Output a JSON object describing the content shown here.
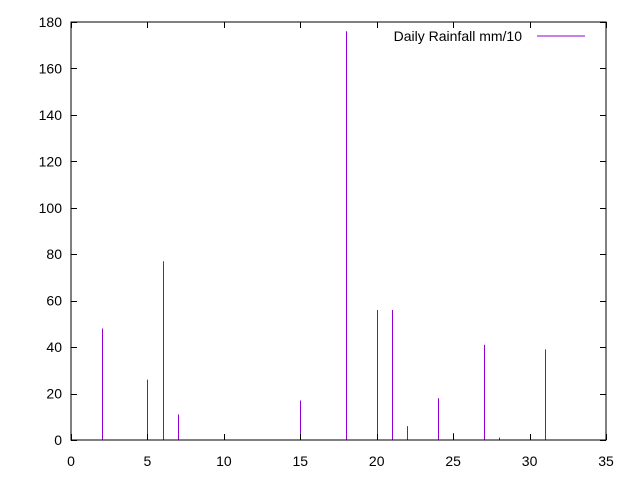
{
  "chart_data": {
    "type": "bar",
    "style": "impulses",
    "title": "",
    "xlabel": "",
    "ylabel": "",
    "xlim": [
      0,
      35
    ],
    "ylim": [
      0,
      180
    ],
    "x_ticks": [
      0,
      5,
      10,
      15,
      20,
      25,
      30,
      35
    ],
    "y_ticks": [
      0,
      20,
      40,
      60,
      80,
      100,
      120,
      140,
      160,
      180
    ],
    "x_tick_labels": [
      "0",
      "5",
      "10",
      "15",
      "20",
      "25",
      "30",
      "35"
    ],
    "y_tick_labels": [
      "0",
      "20",
      "40",
      "60",
      "80",
      "100",
      "120",
      "140",
      "160",
      "180"
    ],
    "grid": false,
    "legend_position": "top-right",
    "series": [
      {
        "name": "Daily Rainfall mm/10",
        "color": "#9400d3",
        "x": [
          2,
          5,
          6,
          7,
          15,
          18,
          20,
          21,
          22,
          24,
          25,
          27,
          28,
          31
        ],
        "y": [
          48,
          26,
          77,
          11,
          17,
          176,
          56,
          56,
          6,
          18,
          3,
          41,
          1,
          39
        ]
      }
    ]
  }
}
